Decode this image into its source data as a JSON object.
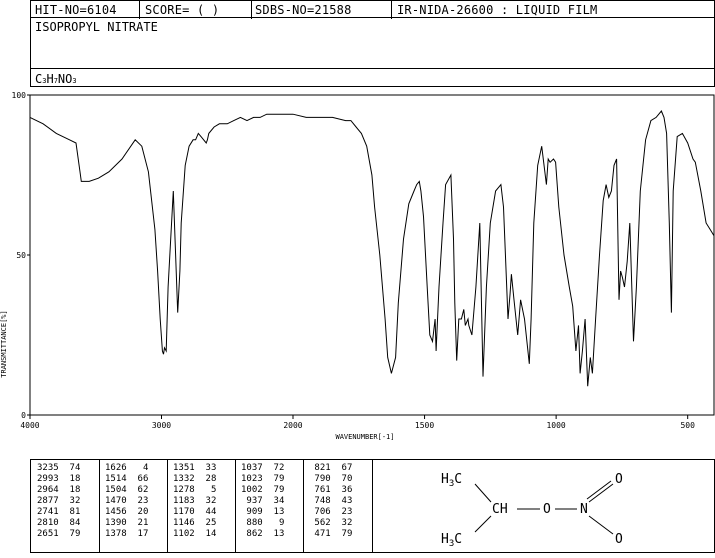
{
  "header": {
    "hit_no": "HIT-NO=6104",
    "score": "SCORE=  (  )",
    "sdbs_no": "SDBS-NO=21588",
    "ir_id": "IR-NIDA-26600 : LIQUID FILM"
  },
  "compound_name": "ISOPROPYL NITRATE",
  "formula": {
    "c": "C",
    "c_n": "3",
    "h": "H",
    "h_n": "7",
    "n": "N",
    "o": "O",
    "o_n": "3"
  },
  "chart_data": {
    "type": "line",
    "title": "",
    "xlabel": "WAVENUMBER[-1]",
    "ylabel": "TRANSMITTANCE[%]",
    "xlim": [
      4000,
      400
    ],
    "ylim": [
      0,
      100
    ],
    "x_ticks": [
      "4000",
      "3000",
      "2000",
      "1500",
      "1000",
      "500"
    ],
    "x_tick_values": [
      4000,
      3000,
      2000,
      1500,
      1000,
      500
    ],
    "y_ticks": [
      "0",
      "50",
      "100"
    ],
    "y_tick_values": [
      0,
      50,
      100
    ],
    "series": [
      {
        "x": [
          4000,
          3900,
          3800,
          3700,
          3650,
          3620,
          3610,
          3550,
          3480,
          3400,
          3300,
          3200,
          3150,
          3100,
          3050,
          3030,
          3010,
          2993,
          2985,
          2977,
          2964,
          2950,
          2930,
          2910,
          2877,
          2860,
          2850,
          2820,
          2790,
          2760,
          2741,
          2720,
          2700,
          2660,
          2651,
          2640,
          2600,
          2560,
          2500,
          2450,
          2400,
          2350,
          2300,
          2250,
          2200,
          2100,
          2000,
          1950,
          1900,
          1850,
          1800,
          1780,
          1760,
          1740,
          1720,
          1700,
          1690,
          1670,
          1650,
          1640,
          1626,
          1610,
          1600,
          1580,
          1560,
          1540,
          1530,
          1520,
          1514,
          1504,
          1490,
          1480,
          1470,
          1460,
          1456,
          1445,
          1430,
          1420,
          1400,
          1390,
          1385,
          1378,
          1370,
          1360,
          1351,
          1345,
          1335,
          1332,
          1320,
          1305,
          1290,
          1278,
          1265,
          1250,
          1230,
          1210,
          1200,
          1183,
          1175,
          1170,
          1160,
          1146,
          1135,
          1120,
          1102,
          1095,
          1085,
          1070,
          1055,
          1037,
          1030,
          1023,
          1010,
          1002,
          990,
          970,
          950,
          937,
          925,
          915,
          909,
          900,
          890,
          880,
          870,
          862,
          850,
          835,
          821,
          810,
          800,
          790,
          780,
          770,
          761,
          755,
          748,
          740,
          730,
          720,
          706,
          695,
          680,
          660,
          640,
          620,
          600,
          590,
          580,
          570,
          562,
          555,
          540,
          520,
          500,
          480,
          471,
          450,
          430,
          415,
          400
        ],
        "values": [
          93,
          91,
          88,
          86,
          85,
          76,
          73,
          73,
          74,
          76,
          80,
          86,
          84,
          76,
          58,
          45,
          30,
          20,
          19,
          21,
          20,
          40,
          55,
          70,
          32,
          45,
          60,
          78,
          84,
          86,
          86,
          88,
          87,
          85,
          86,
          88,
          90,
          91,
          91,
          92,
          93,
          92,
          93,
          93,
          94,
          94,
          94,
          93,
          93,
          93,
          92,
          92,
          90,
          88,
          84,
          75,
          65,
          50,
          30,
          18,
          13,
          18,
          35,
          55,
          66,
          70,
          72,
          73,
          70,
          62,
          40,
          25,
          23,
          30,
          20,
          40,
          60,
          72,
          75,
          55,
          35,
          17,
          30,
          30,
          33,
          28,
          30,
          28,
          25,
          40,
          60,
          12,
          40,
          60,
          70,
          72,
          65,
          30,
          38,
          44,
          36,
          25,
          36,
          30,
          16,
          30,
          60,
          78,
          84,
          72,
          80,
          79,
          80,
          79,
          65,
          50,
          40,
          34,
          20,
          28,
          13,
          20,
          30,
          9,
          18,
          13,
          30,
          50,
          67,
          72,
          68,
          70,
          78,
          80,
          36,
          45,
          43,
          40,
          48,
          60,
          23,
          40,
          70,
          86,
          92,
          93,
          95,
          93,
          88,
          60,
          32,
          70,
          87,
          88,
          85,
          80,
          79,
          70,
          60,
          58,
          56
        ],
        "stroke": "#000000"
      }
    ],
    "peaks": [
      [
        "3235",
        "74"
      ],
      [
        "2993",
        "18"
      ],
      [
        "2964",
        "18"
      ],
      [
        "2877",
        "32"
      ],
      [
        "2741",
        "81"
      ],
      [
        "2810",
        "84"
      ],
      [
        "2651",
        "79"
      ],
      [
        "1626",
        "4"
      ],
      [
        "1514",
        "66"
      ],
      [
        "1504",
        "62"
      ],
      [
        "1470",
        "23"
      ],
      [
        "1456",
        "20"
      ],
      [
        "1390",
        "21"
      ],
      [
        "1378",
        "17"
      ],
      [
        "1351",
        "33"
      ],
      [
        "1332",
        "28"
      ],
      [
        "1278",
        "5"
      ],
      [
        "1183",
        "32"
      ],
      [
        "1170",
        "44"
      ],
      [
        "1146",
        "25"
      ],
      [
        "1102",
        "14"
      ],
      [
        "1037",
        "72"
      ],
      [
        "1023",
        "79"
      ],
      [
        "1002",
        "79"
      ],
      [
        "937",
        "34"
      ],
      [
        "909",
        "13"
      ],
      [
        "880",
        "9"
      ],
      [
        "862",
        "13"
      ],
      [
        "821",
        "67"
      ],
      [
        "790",
        "70"
      ],
      [
        "761",
        "36"
      ],
      [
        "748",
        "43"
      ],
      [
        "706",
        "23"
      ],
      [
        "562",
        "32"
      ],
      [
        "471",
        "79"
      ]
    ]
  },
  "structure": {
    "methyl_top": "H3C",
    "methine": "CH",
    "oxygen": "O",
    "nitrogen": "N",
    "oxo_top": "O",
    "oxo_bottom": "O",
    "methyl_bottom": "H3C"
  }
}
